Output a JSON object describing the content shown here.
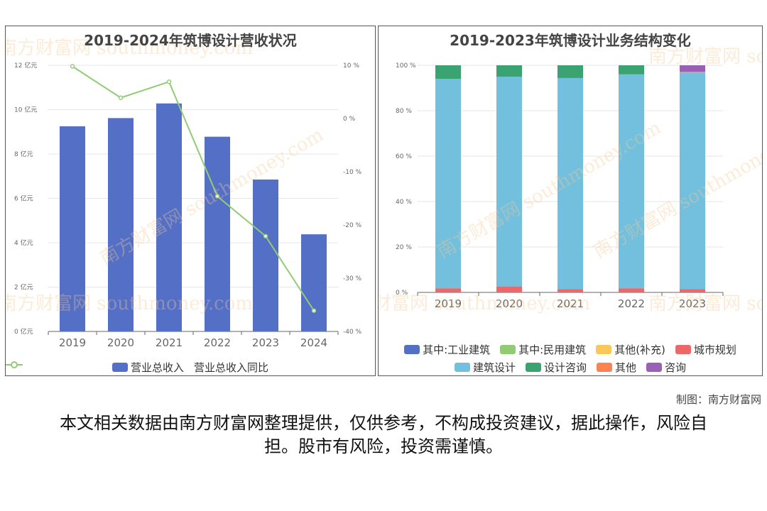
{
  "watermark": {
    "cn": "南方财富网",
    "en": "southmoney.com"
  },
  "credit": "制图：南方财富网",
  "disclaimer": "本文相关数据由南方财富网整理提供，仅供参考，不构成投资建议，据此操作，风险自担。股市有风险，投资需谨慎。",
  "chart_data": [
    {
      "type": "bar",
      "title": "2019-2024年筑博设计营收状况",
      "categories": [
        "2019",
        "2020",
        "2021",
        "2022",
        "2023",
        "2024"
      ],
      "y_axis_left": {
        "min": 0,
        "max": 12,
        "ticks": [
          "0 亿元",
          "2 亿元",
          "4 亿元",
          "6 亿元",
          "8 亿元",
          "10 亿元",
          "12 亿元"
        ]
      },
      "y_axis_right": {
        "min": -40,
        "max": 10,
        "ticks": [
          "10 %",
          "0 %",
          "-10 %",
          "-20 %",
          "-30 %",
          "-40 %"
        ]
      },
      "series": [
        {
          "name": "营业总收入",
          "kind": "bar",
          "axis": "left",
          "color": "#5470c6",
          "values": [
            9.25,
            9.62,
            10.28,
            8.78,
            6.85,
            4.38
          ]
        },
        {
          "name": "营业总收入同比",
          "kind": "line",
          "axis": "right",
          "color": "#91cc75",
          "values": [
            9.8,
            3.9,
            6.9,
            -14.6,
            -22.1,
            -36.1
          ]
        }
      ],
      "legend": [
        "营业总收入",
        "营业总收入同比"
      ],
      "grid": true
    },
    {
      "type": "bar",
      "stacked": true,
      "title": "2019-2023年筑博设计业务结构变化",
      "categories": [
        "2019",
        "2020",
        "2021",
        "2022",
        "2023"
      ],
      "y_axis": {
        "min": 0,
        "max": 100,
        "ticks": [
          "0 %",
          "20 %",
          "40 %",
          "60 %",
          "80 %",
          "100 %"
        ]
      },
      "series": [
        {
          "name": "其中:工业建筑",
          "color": "#5470c6",
          "values": [
            0,
            0,
            0,
            0,
            0
          ]
        },
        {
          "name": "其中:民用建筑",
          "color": "#91cc75",
          "values": [
            0,
            0,
            0,
            0,
            0
          ]
        },
        {
          "name": "其他(补充)",
          "color": "#fac858",
          "values": [
            0,
            0,
            0,
            0,
            0
          ]
        },
        {
          "name": "城市规划",
          "color": "#ee6666",
          "values": [
            1.8,
            2.5,
            1.5,
            1.8,
            1.5
          ]
        },
        {
          "name": "建筑设计",
          "color": "#73c0de",
          "values": [
            92.2,
            92.5,
            92.9,
            94.2,
            95.3
          ]
        },
        {
          "name": "设计咨询",
          "color": "#3ba272",
          "values": [
            6.0,
            5.0,
            5.6,
            4.0,
            0
          ]
        },
        {
          "name": "其他",
          "color": "#fc8452",
          "values": [
            0,
            0,
            0,
            0,
            0.4
          ]
        },
        {
          "name": "咨询",
          "color": "#9a60b4",
          "values": [
            0,
            0,
            0,
            0,
            2.8
          ]
        }
      ],
      "legend": [
        "其中:工业建筑",
        "其中:民用建筑",
        "其他(补充)",
        "城市规划",
        "建筑设计",
        "设计咨询",
        "其他",
        "咨询"
      ],
      "grid": true
    }
  ]
}
